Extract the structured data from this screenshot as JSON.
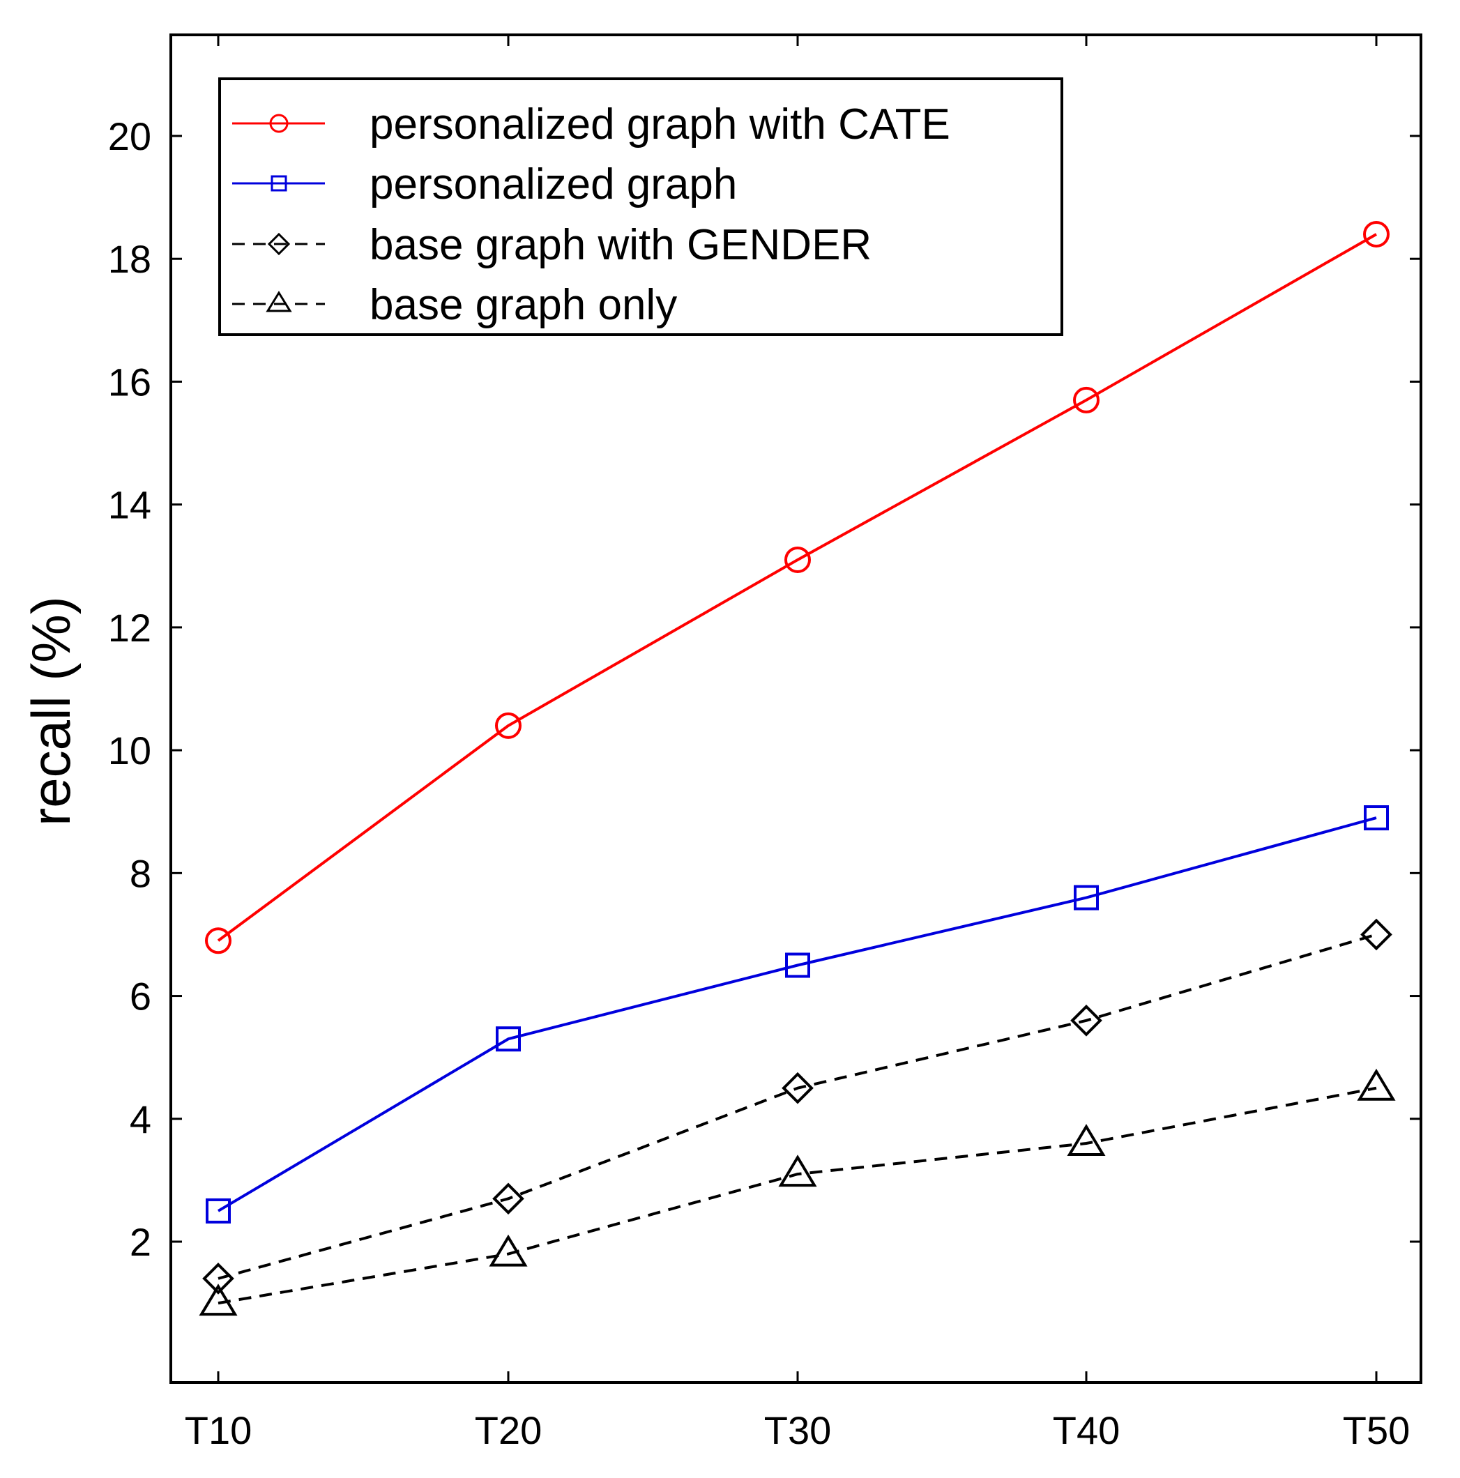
{
  "chart_data": {
    "type": "line",
    "title": "",
    "xlabel": "",
    "ylabel": "recall (%)",
    "categories": [
      "T10",
      "T20",
      "T30",
      "T40",
      "T50"
    ],
    "ylim": [
      0,
      21.5
    ],
    "yticks": [
      2,
      4,
      6,
      8,
      10,
      12,
      14,
      16,
      18,
      20
    ],
    "legend_position": "top-left",
    "grid": false,
    "series": [
      {
        "name": "personalized graph with CATE",
        "values": [
          6.9,
          10.4,
          13.1,
          15.7,
          18.4
        ],
        "color": "#ff0000",
        "marker": "circle",
        "dash": "solid"
      },
      {
        "name": "personalized graph",
        "values": [
          2.5,
          5.3,
          6.5,
          7.6,
          8.9
        ],
        "color": "#0000dd",
        "marker": "square",
        "dash": "solid"
      },
      {
        "name": "base graph with GENDER",
        "values": [
          1.4,
          2.7,
          4.5,
          5.6,
          7.0
        ],
        "color": "#000000",
        "marker": "diamond",
        "dash": "dashed"
      },
      {
        "name": "base graph only",
        "values": [
          1.0,
          1.8,
          3.1,
          3.6,
          4.5
        ],
        "color": "#000000",
        "marker": "triangle",
        "dash": "dashed"
      }
    ]
  }
}
